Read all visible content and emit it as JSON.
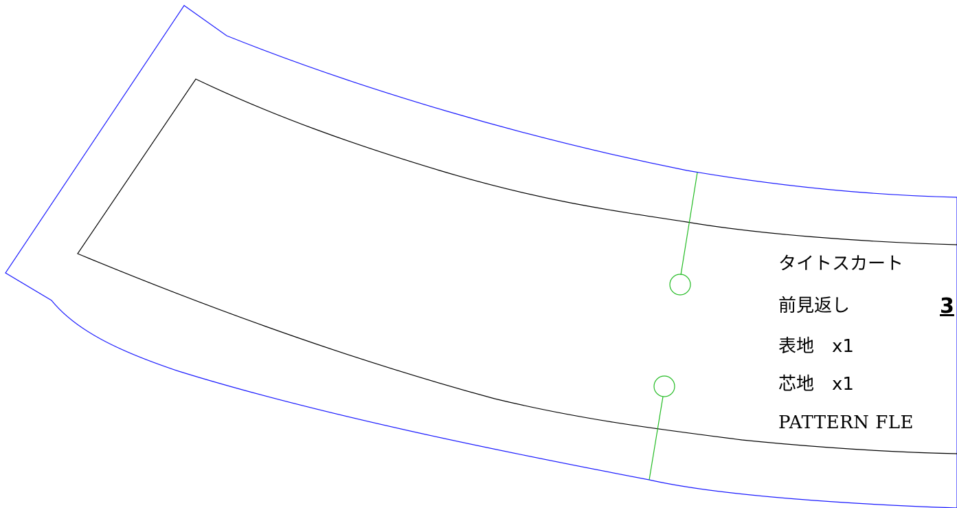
{
  "pattern": {
    "garment": "タイトスカート",
    "piece_name": "前見返し",
    "size_mark": "3",
    "fabric_line": "表地　x1",
    "interfacing_line": "芯地　x1",
    "brand": "PATTERN FLE"
  },
  "colors": {
    "seam_allowance": "#1a1aff",
    "finished_line": "#000000",
    "notch_marker": "#22bb22",
    "background": "#ffffff"
  }
}
